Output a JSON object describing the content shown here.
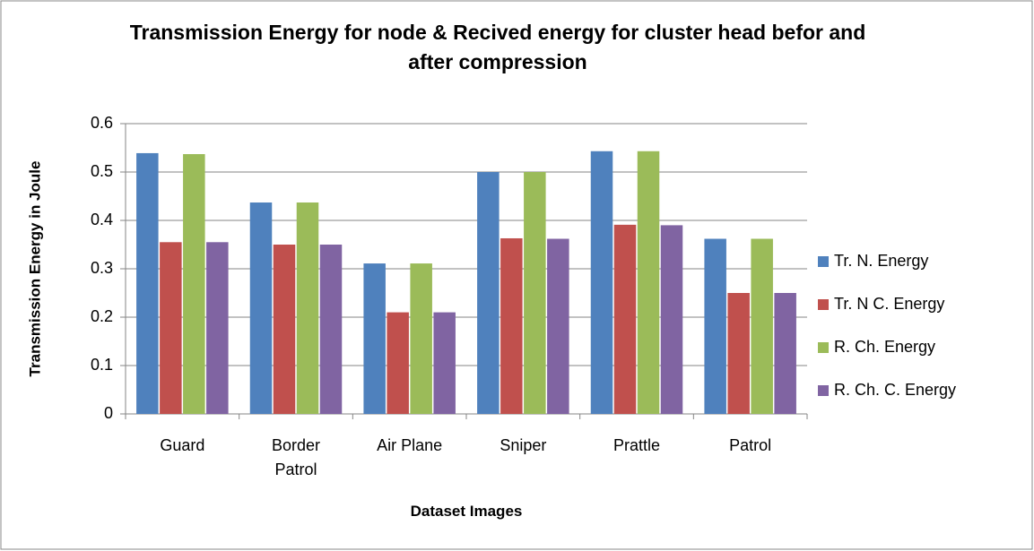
{
  "chart_data": {
    "type": "bar",
    "title": "Transmission Energy for node & Recived energy for cluster head befor and after compression",
    "x_label": "Dataset Images",
    "y_label": "Transmission Energy in Joule",
    "categories": [
      "Guard",
      "Border Patrol",
      "Air Plane",
      "Sniper",
      "Prattle",
      "Patrol"
    ],
    "series": [
      {
        "name": "Tr. N. Energy",
        "color": "#4f81bd",
        "values": [
          0.539,
          0.437,
          0.311,
          0.5,
          0.543,
          0.362
        ]
      },
      {
        "name": "Tr. N C. Energy",
        "color": "#c0504d",
        "values": [
          0.355,
          0.35,
          0.21,
          0.363,
          0.391,
          0.25
        ]
      },
      {
        "name": "R. Ch. Energy",
        "color": "#9bbb59",
        "values": [
          0.537,
          0.437,
          0.311,
          0.5,
          0.543,
          0.362
        ]
      },
      {
        "name": "R. Ch. C. Energy",
        "color": "#8064a2",
        "values": [
          0.355,
          0.35,
          0.21,
          0.362,
          0.39,
          0.25
        ]
      }
    ],
    "ylim": [
      0,
      0.6
    ],
    "yticks": [
      0,
      0.1,
      0.2,
      0.3,
      0.4,
      0.5,
      0.6
    ],
    "grid": true,
    "legend": "right"
  }
}
